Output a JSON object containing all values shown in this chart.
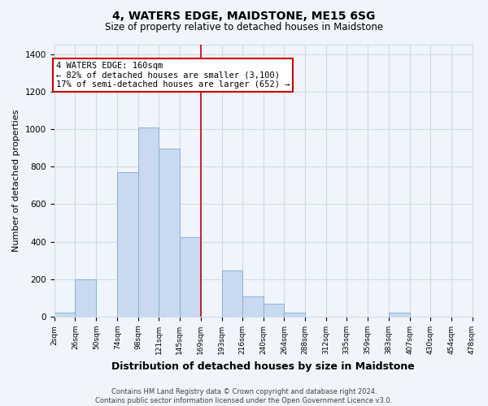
{
  "title": "4, WATERS EDGE, MAIDSTONE, ME15 6SG",
  "subtitle": "Size of property relative to detached houses in Maidstone",
  "xlabel": "Distribution of detached houses by size in Maidstone",
  "ylabel": "Number of detached properties",
  "bin_edges": [
    2,
    26,
    50,
    74,
    98,
    121,
    145,
    169,
    193,
    216,
    240,
    264,
    288,
    312,
    335,
    359,
    383,
    407,
    430,
    454,
    478
  ],
  "bar_heights": [
    20,
    200,
    0,
    770,
    1010,
    895,
    425,
    0,
    245,
    110,
    70,
    20,
    0,
    0,
    0,
    0,
    20,
    0,
    0,
    0
  ],
  "bar_color": "#c9d9ef",
  "bar_edgecolor": "#7badd4",
  "vline_x": 169,
  "vline_color": "#cc0000",
  "annotation_text": "4 WATERS EDGE: 160sqm\n← 82% of detached houses are smaller (3,100)\n17% of semi-detached houses are larger (652) →",
  "annotation_box_edgecolor": "#cc0000",
  "annotation_box_facecolor": "white",
  "ylim": [
    0,
    1450
  ],
  "yticks": [
    0,
    200,
    400,
    600,
    800,
    1000,
    1200,
    1400
  ],
  "tick_labels": [
    "2sqm",
    "26sqm",
    "50sqm",
    "74sqm",
    "98sqm",
    "121sqm",
    "145sqm",
    "169sqm",
    "193sqm",
    "216sqm",
    "240sqm",
    "264sqm",
    "288sqm",
    "312sqm",
    "335sqm",
    "359sqm",
    "383sqm",
    "407sqm",
    "430sqm",
    "454sqm",
    "478sqm"
  ],
  "footer_text": "Contains HM Land Registry data © Crown copyright and database right 2024.\nContains public sector information licensed under the Open Government Licence v3.0.",
  "background_color": "#f0f4fb",
  "grid_color": "#d0daea",
  "title_fontsize": 10,
  "subtitle_fontsize": 8.5,
  "xlabel_fontsize": 9,
  "ylabel_fontsize": 8,
  "tick_fontsize": 6.5,
  "footer_fontsize": 6,
  "annotation_fontsize": 7.5
}
